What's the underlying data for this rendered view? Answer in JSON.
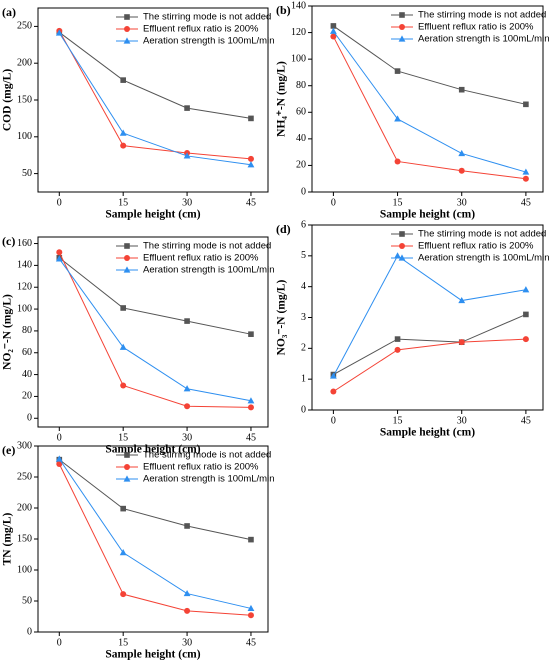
{
  "chart_data": [
    {
      "type": "line",
      "panel_label": "(a)",
      "x_label": "Sample height (cm)",
      "y_label": "COD (mg/L)",
      "x": [
        0,
        15,
        30,
        45
      ],
      "xlim": [
        -5,
        49
      ],
      "xticks": [
        0,
        15,
        30,
        45
      ],
      "ylim": [
        25,
        275
      ],
      "yticks": [
        50,
        100,
        150,
        200,
        250
      ],
      "legend": "upper right",
      "series": [
        {
          "name": "The stirring mode is not added",
          "color": "#555555",
          "marker": "square",
          "values": [
            242,
            177,
            139,
            125
          ]
        },
        {
          "name": "Effluent reflux ratio is 200%",
          "color": "#f44336",
          "marker": "circle",
          "values": [
            244,
            88,
            78,
            70
          ]
        },
        {
          "name": "Aeration strength is 100mL/min",
          "color": "#2e8ff0",
          "marker": "triangle",
          "values": [
            241,
            105,
            74,
            62
          ]
        }
      ]
    },
    {
      "type": "line",
      "panel_label": "(b)",
      "x_label": "Sample height (cm)",
      "y_label": "NH₄⁺-N (mg/L)",
      "x": [
        0,
        15,
        30,
        45
      ],
      "xlim": [
        -5,
        49
      ],
      "xticks": [
        0,
        15,
        30,
        45
      ],
      "ylim": [
        0,
        140
      ],
      "yticks": [
        0,
        20,
        40,
        60,
        80,
        100,
        120,
        140
      ],
      "legend": "upper right",
      "series": [
        {
          "name": "The stirring mode is not added",
          "color": "#555555",
          "marker": "square",
          "values": [
            125,
            91,
            77,
            66
          ]
        },
        {
          "name": "Effluent reflux ratio is 200%",
          "color": "#f44336",
          "marker": "circle",
          "values": [
            117,
            23,
            16,
            10
          ]
        },
        {
          "name": "Aeration strength is 100mL/min",
          "color": "#2e8ff0",
          "marker": "triangle",
          "values": [
            121,
            55,
            29,
            15
          ]
        }
      ]
    },
    {
      "type": "line",
      "panel_label": "(c)",
      "x_label": "Sample height (cm)",
      "y_label": "NO₂⁻-N (mg/L)",
      "x": [
        0,
        15,
        30,
        45
      ],
      "xlim": [
        -5,
        49
      ],
      "xticks": [
        0,
        15,
        30,
        45
      ],
      "ylim": [
        -8,
        166
      ],
      "yticks": [
        0,
        20,
        40,
        60,
        80,
        100,
        120,
        140,
        160
      ],
      "legend": "upper right",
      "series": [
        {
          "name": "The stirring mode is not added",
          "color": "#555555",
          "marker": "square",
          "values": [
            147,
            101,
            89,
            77
          ]
        },
        {
          "name": "Effluent reflux ratio is 200%",
          "color": "#f44336",
          "marker": "circle",
          "values": [
            152,
            30,
            11,
            10
          ]
        },
        {
          "name": "Aeration strength is 100mL/min",
          "color": "#2e8ff0",
          "marker": "triangle",
          "values": [
            146,
            65,
            27,
            16
          ]
        }
      ]
    },
    {
      "type": "line",
      "panel_label": "(d)",
      "x_label": "Sample height (cm)",
      "y_label": "NO₃⁻-N (mg/L)",
      "x": [
        0,
        15,
        30,
        45
      ],
      "xlim": [
        -5,
        49
      ],
      "xticks": [
        0,
        15,
        30,
        45
      ],
      "ylim": [
        0,
        6
      ],
      "yticks": [
        0,
        1,
        2,
        3,
        4,
        5,
        6
      ],
      "legend": "upper right",
      "series": [
        {
          "name": "The stirring mode is not added",
          "color": "#555555",
          "marker": "square",
          "values": [
            1.15,
            2.3,
            2.2,
            3.1
          ]
        },
        {
          "name": "Effluent reflux ratio is 200%",
          "color": "#f44336",
          "marker": "circle",
          "values": [
            0.6,
            1.95,
            2.2,
            2.3
          ]
        },
        {
          "name": "Aeration strength is 100mL/min",
          "color": "#2e8ff0",
          "marker": "triangle",
          "values": [
            1.1,
            5.0,
            3.55,
            3.9
          ]
        }
      ]
    },
    {
      "type": "line",
      "panel_label": "(e)",
      "x_label": "Sample height (cm)",
      "y_label": "TN (mg/L)",
      "x": [
        0,
        15,
        30,
        45
      ],
      "xlim": [
        -5,
        49
      ],
      "xticks": [
        0,
        15,
        30,
        45
      ],
      "ylim": [
        0,
        300
      ],
      "yticks": [
        0,
        50,
        100,
        150,
        200,
        250,
        300
      ],
      "legend": "upper right",
      "series": [
        {
          "name": "The stirring mode is not added",
          "color": "#555555",
          "marker": "square",
          "values": [
            278,
            199,
            171,
            149
          ]
        },
        {
          "name": "Effluent reflux ratio is 200%",
          "color": "#f44336",
          "marker": "circle",
          "values": [
            271,
            61,
            34,
            27
          ]
        },
        {
          "name": "Aeration strength is 100mL/min",
          "color": "#2e8ff0",
          "marker": "triangle",
          "values": [
            279,
            128,
            62,
            38
          ]
        }
      ]
    }
  ]
}
